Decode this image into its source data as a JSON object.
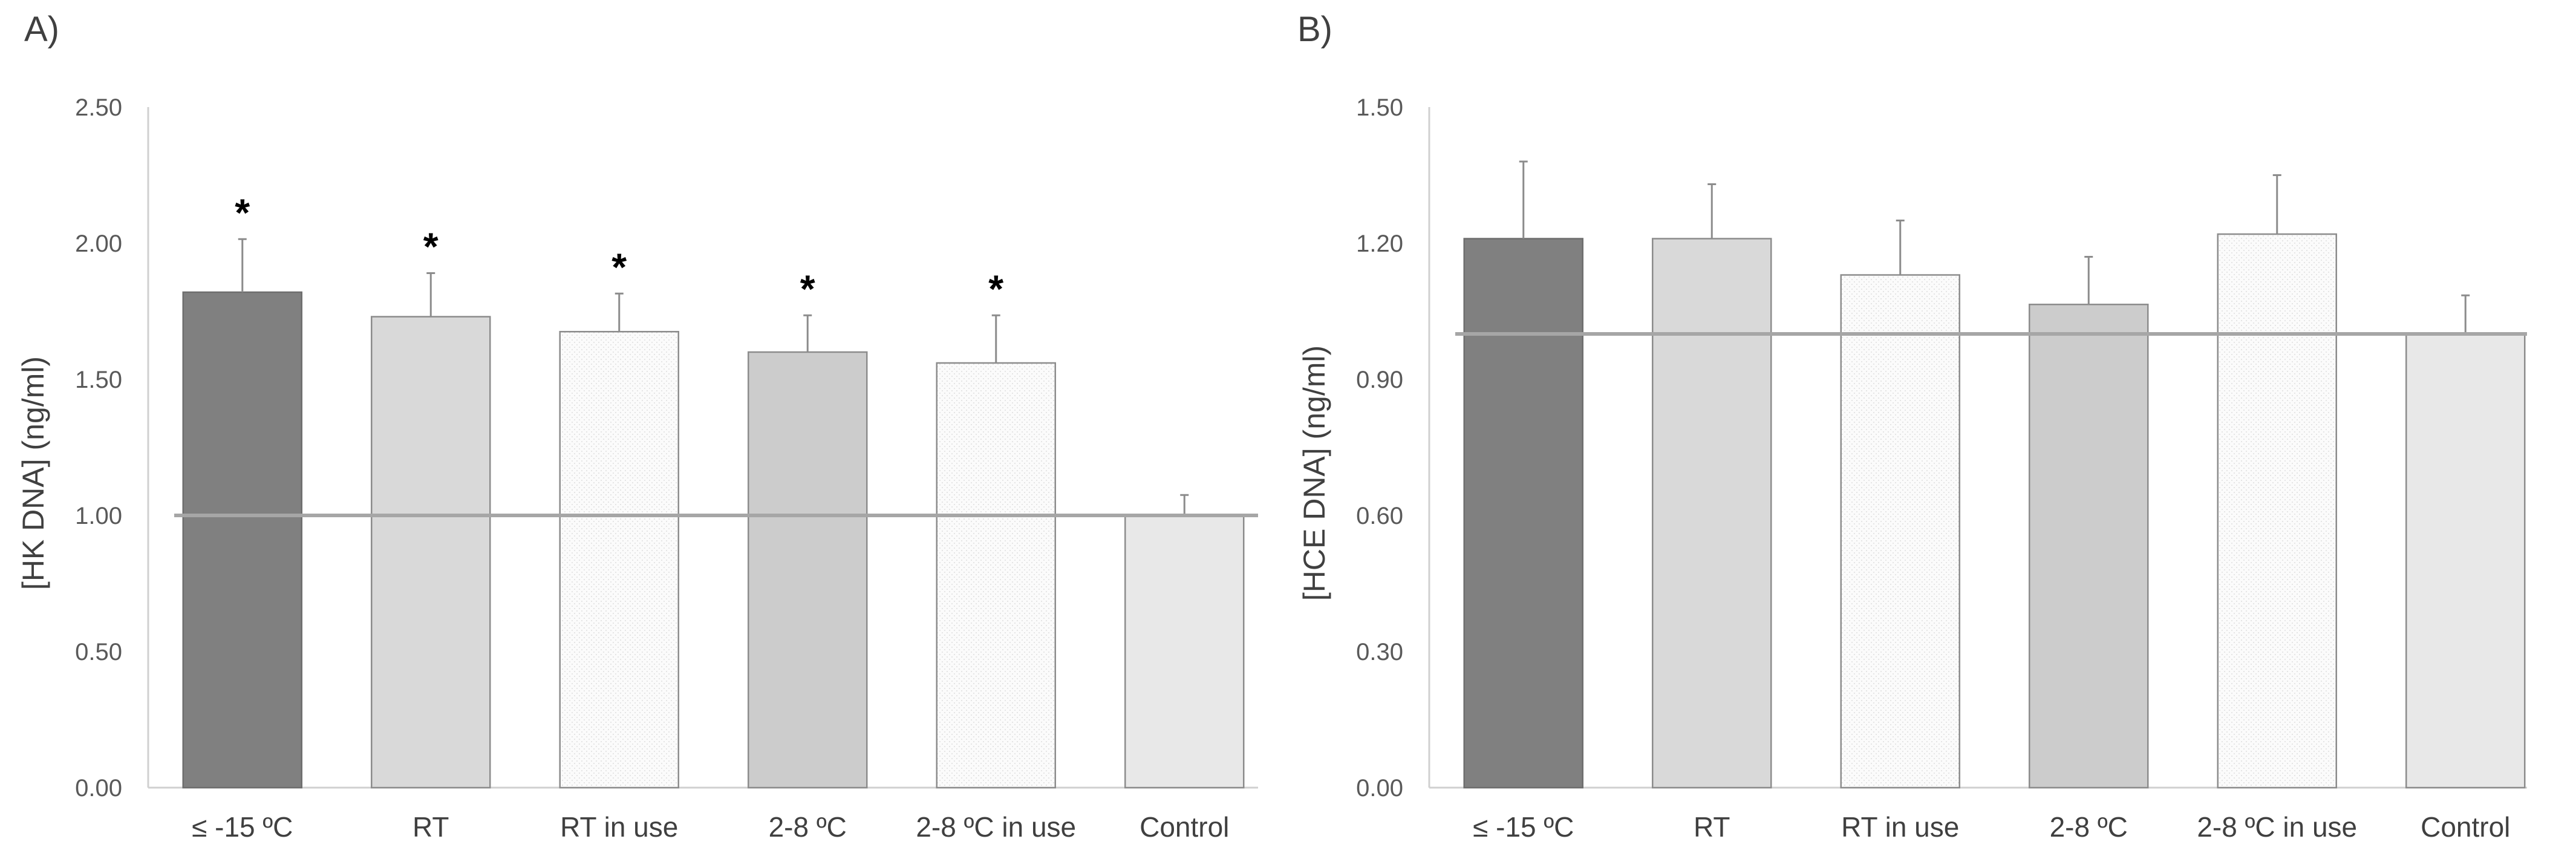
{
  "chart_data": [
    {
      "panel_label": "A)",
      "type": "bar",
      "categories": [
        "≤ -15 ºC",
        "RT",
        "RT in use",
        "2-8 ºC",
        "2-8 ºC in use",
        "Control"
      ],
      "values": [
        1.82,
        1.73,
        1.675,
        1.6,
        1.56,
        1.0
      ],
      "error_upper": [
        0.195,
        0.16,
        0.14,
        0.135,
        0.175,
        0.075
      ],
      "significance": [
        "*",
        "*",
        "*",
        "*",
        "*",
        ""
      ],
      "ylabel": "[HK DNA] (ng/ml)",
      "xlabel": "",
      "ylim": [
        0,
        2.5
      ],
      "yticks": [
        "0.00",
        "0.50",
        "1.00",
        "1.50",
        "2.00",
        "2.50"
      ],
      "reference_line": 1.0,
      "grid": false
    },
    {
      "panel_label": "B)",
      "type": "bar",
      "categories": [
        "≤ -15 ºC",
        "RT",
        "RT in use",
        "2-8 ºC",
        "2-8 ºC in use",
        "Control"
      ],
      "values": [
        1.21,
        1.21,
        1.13,
        1.065,
        1.22,
        1.0
      ],
      "error_upper": [
        0.17,
        0.12,
        0.12,
        0.105,
        0.13,
        0.085
      ],
      "significance": [
        "",
        "",
        "",
        "",
        "",
        ""
      ],
      "ylabel": "[HCE DNA] (ng/ml)",
      "xlabel": "",
      "ylim": [
        0,
        1.5
      ],
      "yticks": [
        "0.00",
        "0.30",
        "0.60",
        "0.90",
        "1.20",
        "1.50"
      ],
      "reference_line": 1.0,
      "grid": false
    }
  ],
  "colors": {
    "bar_fills": [
      "#808080",
      "#d9d9d9",
      "#f8f8f8",
      "#cccccc",
      "#fbfbfb",
      "#e8e8e8"
    ],
    "bar_strokes": [
      "#6e6e6e",
      "#8c8c8c",
      "#8c8c8c",
      "#8c8c8c",
      "#8c8c8c",
      "#8c8c8c"
    ],
    "axis": "#d0d0d0",
    "reference_line": "#a6a6a6",
    "error_bar": "#8c8c8c"
  }
}
